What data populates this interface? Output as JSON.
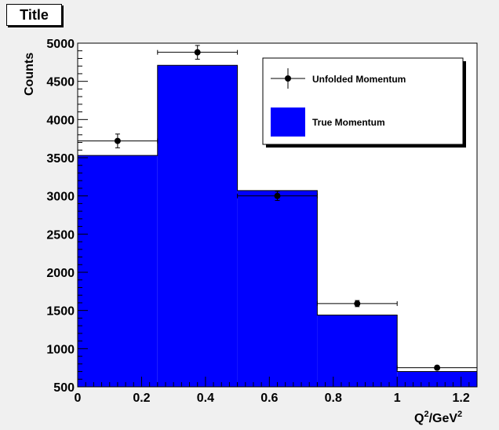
{
  "title": "Title",
  "chart_data": {
    "type": "bar",
    "title": "Title",
    "xlabel_base": "Q",
    "xlabel_exp1": "2",
    "xlabel_mid": "/GeV",
    "xlabel_exp2": "2",
    "ylabel": "Counts",
    "xlim": [
      0,
      1.25
    ],
    "ylim": [
      500,
      5000
    ],
    "x_ticks": [
      "0",
      "0.2",
      "0.4",
      "0.6",
      "0.8",
      "1",
      "1.2"
    ],
    "y_ticks": [
      "500",
      "1000",
      "1500",
      "2000",
      "2500",
      "3000",
      "3500",
      "4000",
      "4500",
      "5000"
    ],
    "grid": false,
    "legend_position": "top-right",
    "bin_edges": [
      0,
      0.25,
      0.5,
      0.75,
      1.0,
      1.25
    ],
    "series": [
      {
        "name": "True Momentum",
        "kind": "histogram",
        "color": "#0000ff",
        "values": [
          3530,
          4710,
          3070,
          1440,
          700
        ]
      },
      {
        "name": "Unfolded Momentum",
        "kind": "points-with-errors",
        "color": "#000000",
        "x": [
          0.125,
          0.375,
          0.625,
          0.875,
          1.125
        ],
        "values": [
          3720,
          4880,
          3000,
          1590,
          750
        ],
        "x_err": [
          0.125,
          0.125,
          0.125,
          0.125,
          0.125
        ],
        "y_err": [
          90,
          90,
          60,
          40,
          25
        ]
      }
    ]
  }
}
